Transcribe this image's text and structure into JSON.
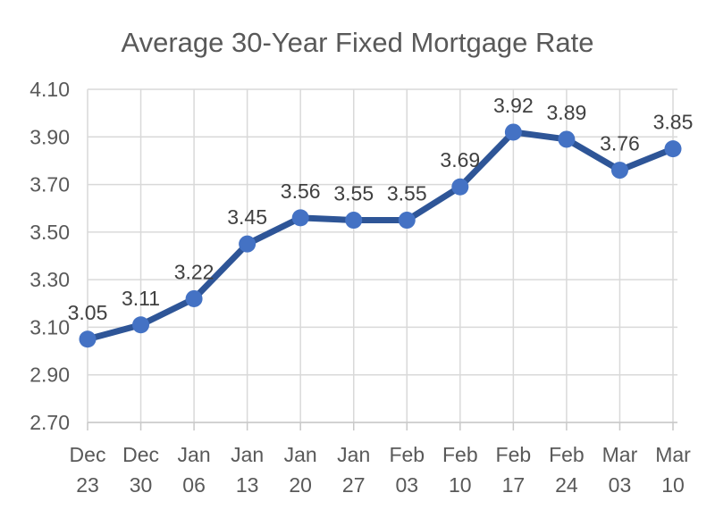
{
  "chart_data": {
    "type": "line",
    "title": "Average 30-Year Fixed Mortgage Rate",
    "categories": [
      "Dec 23",
      "Dec 30",
      "Jan 06",
      "Jan 13",
      "Jan 20",
      "Jan 27",
      "Feb 03",
      "Feb 10",
      "Feb 17",
      "Feb 24",
      "Mar 03",
      "Mar 10"
    ],
    "values": [
      3.05,
      3.11,
      3.22,
      3.45,
      3.56,
      3.55,
      3.55,
      3.69,
      3.92,
      3.89,
      3.76,
      3.85
    ],
    "data_labels": [
      "3.05",
      "3.11",
      "3.22",
      "3.45",
      "3.56",
      "3.55",
      "3.55",
      "3.69",
      "3.92",
      "3.89",
      "3.76",
      "3.85"
    ],
    "ylim": [
      2.7,
      4.1
    ],
    "y_tick_step": 0.2,
    "y_tick_labels": [
      "2.70",
      "2.90",
      "3.10",
      "3.30",
      "3.50",
      "3.70",
      "3.90",
      "4.10"
    ],
    "xlabel": "",
    "ylabel": "",
    "grid": true,
    "legend": "none",
    "series_name": "Average 30-Year Fixed Mortgage Rate",
    "colors": {
      "line": "#2e5597",
      "marker": "#4472c4",
      "gridline": "#d9d9d9",
      "axis_line": "#c9c9c9",
      "title_text": "#595959",
      "tick_text": "#595959",
      "data_label_text": "#404040",
      "background": "#ffffff"
    }
  }
}
